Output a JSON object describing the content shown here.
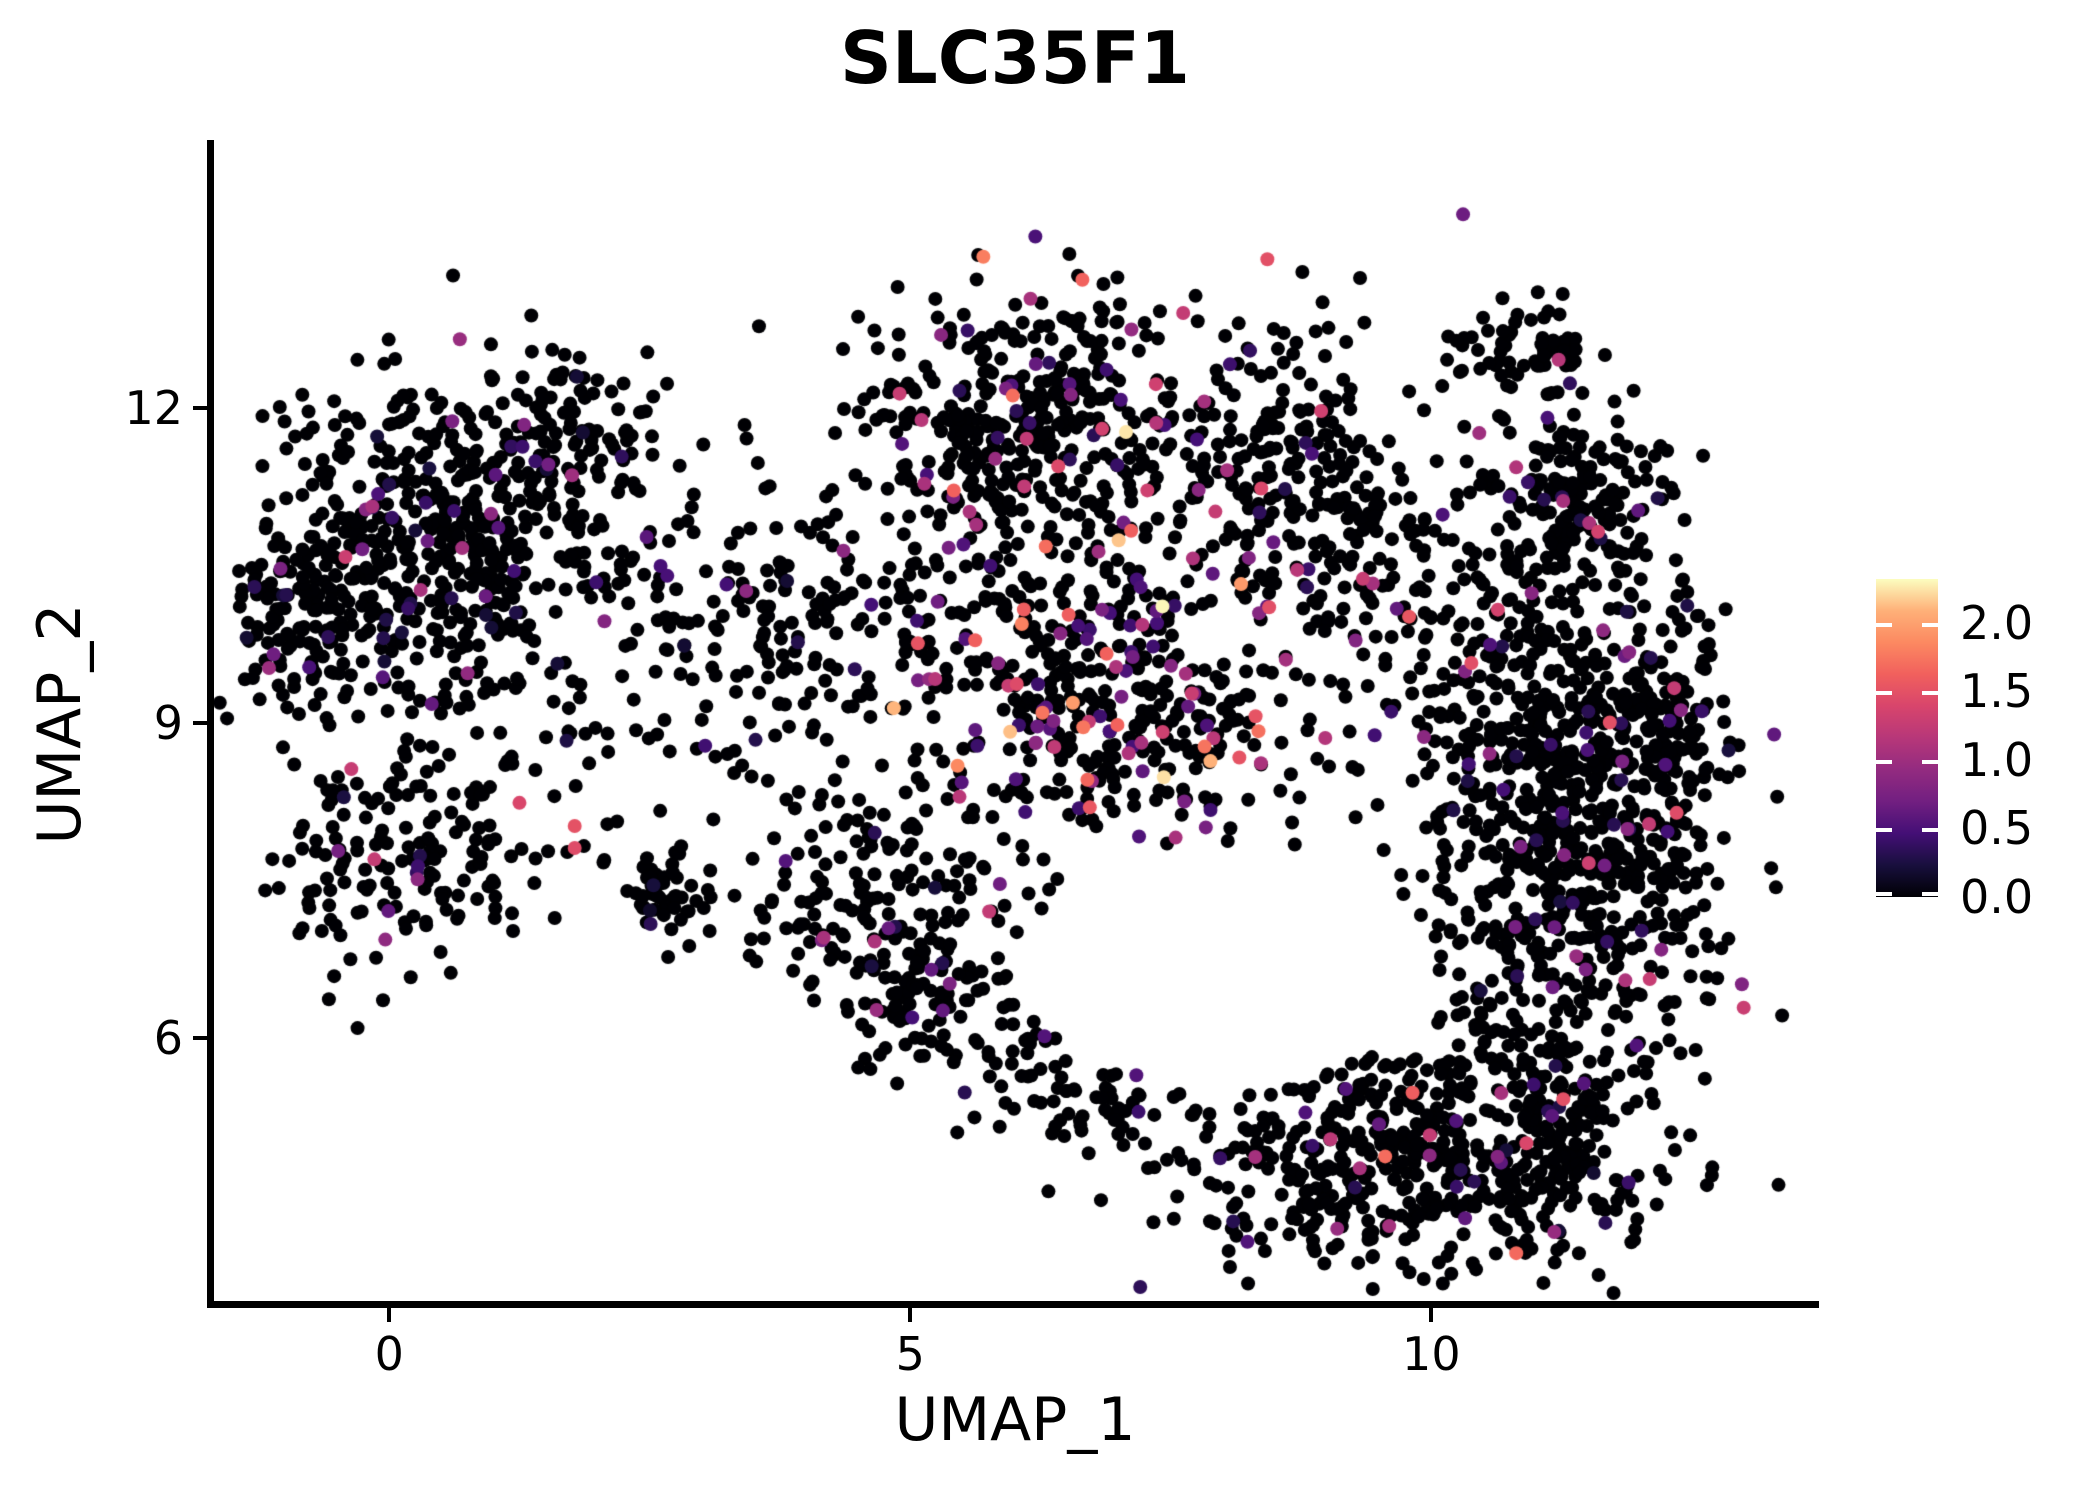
{
  "title": "SLC35F1",
  "axes": {
    "x_label": "UMAP_1",
    "y_label": "UMAP_2",
    "x_ticks": [
      0,
      5,
      10
    ],
    "y_ticks": [
      6,
      9,
      12
    ],
    "x_range": [
      -1.71,
      13.72
    ],
    "y_range": [
      3.46,
      14.55
    ]
  },
  "colorbar": {
    "position": "right",
    "min": 0.0,
    "max": 2.32,
    "tick_values": [
      2.0,
      1.5,
      1.0,
      0.5,
      0.0
    ],
    "tick_labels": [
      "2.0",
      "1.5",
      "1.0",
      "0.5",
      "0.0"
    ],
    "colormap": "magma",
    "stops": [
      {
        "t": 0.0,
        "c": "#000004"
      },
      {
        "t": 0.1,
        "c": "#180f3d"
      },
      {
        "t": 0.2,
        "c": "#440f76"
      },
      {
        "t": 0.3,
        "c": "#721f81"
      },
      {
        "t": 0.4,
        "c": "#932b80"
      },
      {
        "t": 0.5,
        "c": "#b73779"
      },
      {
        "t": 0.6,
        "c": "#d8456c"
      },
      {
        "t": 0.7,
        "c": "#f1605d"
      },
      {
        "t": 0.8,
        "c": "#fc8961"
      },
      {
        "t": 0.9,
        "c": "#feb078"
      },
      {
        "t": 1.0,
        "c": "#fcfdbf"
      }
    ]
  },
  "chart_data": {
    "type": "scatter",
    "title": "SLC35F1",
    "xlabel": "UMAP_1",
    "ylabel": "UMAP_2",
    "xlim": [
      -1.71,
      13.72
    ],
    "ylim": [
      3.46,
      14.55
    ],
    "grid": false,
    "legend_position": "right",
    "point_radius_px": 7,
    "seed": 7,
    "expression_color_scale": {
      "min": 0.0,
      "max": 2.32,
      "colormap": "magma"
    },
    "clusters": [
      {
        "name": "top-left-core",
        "cx": 0.59,
        "cy": 10.7,
        "sx": 0.85,
        "sy": 0.75,
        "rot": -0.3,
        "n": 520,
        "expr_frac": 0.08,
        "expr_max": 1.1
      },
      {
        "name": "top-left-west",
        "cx": -0.81,
        "cy": 9.98,
        "sx": 0.45,
        "sy": 0.55,
        "rot": 0.0,
        "n": 140,
        "expr_frac": 0.07,
        "expr_max": 1.0
      },
      {
        "name": "top-left-north",
        "cx": 1.64,
        "cy": 11.79,
        "sx": 0.5,
        "sy": 0.38,
        "rot": 0.0,
        "n": 90,
        "expr_frac": 0.06,
        "expr_max": 0.9
      },
      {
        "name": "left-lower-arm",
        "cx": 0.3,
        "cy": 7.89,
        "sx": 0.8,
        "sy": 0.5,
        "rot": 0.25,
        "n": 190,
        "expr_frac": 0.06,
        "expr_max": 1.6
      },
      {
        "name": "left-small-blob",
        "cx": 2.62,
        "cy": 7.36,
        "sx": 0.2,
        "sy": 0.2,
        "rot": 0.0,
        "n": 55,
        "expr_frac": 0.04,
        "expr_max": 0.8
      },
      {
        "name": "mid-left",
        "cx": 4.71,
        "cy": 7.41,
        "sx": 0.75,
        "sy": 0.45,
        "rot": 0.15,
        "n": 150,
        "expr_frac": 0.07,
        "expr_max": 1.2
      },
      {
        "name": "center-connector",
        "cx": 3.61,
        "cy": 9.79,
        "sx": 0.85,
        "sy": 0.85,
        "rot": 0.0,
        "n": 210,
        "expr_frac": 0.06,
        "expr_max": 1.0
      },
      {
        "name": "top-middle",
        "cx": 6.25,
        "cy": 11.89,
        "sx": 0.85,
        "sy": 0.62,
        "rot": 0.1,
        "n": 430,
        "expr_frac": 0.1,
        "expr_max": 1.8
      },
      {
        "name": "top-middle-right",
        "cx": 8.6,
        "cy": 11.55,
        "sx": 0.58,
        "sy": 0.65,
        "rot": 0.0,
        "n": 190,
        "expr_frac": 0.09,
        "expr_max": 1.5
      },
      {
        "name": "middle-high-expr",
        "cx": 6.82,
        "cy": 9.31,
        "sx": 1.05,
        "sy": 0.78,
        "rot": -0.2,
        "n": 500,
        "expr_frac": 0.2,
        "expr_max": 2.3
      },
      {
        "name": "mid-right-bridge",
        "cx": 9.61,
        "cy": 10.36,
        "sx": 0.7,
        "sy": 0.65,
        "rot": 0.0,
        "n": 140,
        "expr_frac": 0.1,
        "expr_max": 1.6
      },
      {
        "name": "top-right-clump",
        "cx": 10.92,
        "cy": 12.53,
        "sx": 0.38,
        "sy": 0.26,
        "rot": 0.0,
        "n": 65,
        "expr_frac": 0.08,
        "expr_max": 1.2
      },
      {
        "name": "right-main",
        "cx": 11.43,
        "cy": 8.36,
        "sx": 0.6,
        "sy": 1.6,
        "rot": 0.08,
        "n": 700,
        "expr_frac": 0.07,
        "expr_max": 1.5
      },
      {
        "name": "right-east-bulge",
        "cx": 12.2,
        "cy": 8.65,
        "sx": 0.35,
        "sy": 0.95,
        "rot": 0.0,
        "n": 180,
        "expr_frac": 0.06,
        "expr_max": 1.3
      },
      {
        "name": "right-top-arm",
        "cx": 11.43,
        "cy": 11.17,
        "sx": 0.42,
        "sy": 0.42,
        "rot": 0.0,
        "n": 130,
        "expr_frac": 0.08,
        "expr_max": 1.4
      },
      {
        "name": "right-bottom-taper",
        "cx": 11.29,
        "cy": 4.93,
        "sx": 0.38,
        "sy": 0.5,
        "rot": 0.0,
        "n": 110,
        "expr_frac": 0.04,
        "expr_max": 1.0
      },
      {
        "name": "right-west-edge",
        "cx": 10.42,
        "cy": 7.89,
        "sx": 0.45,
        "sy": 1.2,
        "rot": 0.0,
        "n": 170,
        "expr_frac": 0.07,
        "expr_max": 1.3
      },
      {
        "name": "bottom-main",
        "cx": 9.7,
        "cy": 4.89,
        "sx": 1.0,
        "sy": 0.6,
        "rot": 0.15,
        "n": 480,
        "expr_frac": 0.05,
        "expr_max": 1.7
      },
      {
        "name": "bottom-left-arm",
        "cx": 6.34,
        "cy": 5.7,
        "sx": 0.85,
        "sy": 0.4,
        "rot": -0.45,
        "n": 120,
        "expr_frac": 0.05,
        "expr_max": 1.2
      },
      {
        "name": "small-south-arm",
        "cx": 4.9,
        "cy": 6.36,
        "sx": 0.33,
        "sy": 0.45,
        "rot": 0.5,
        "n": 60,
        "expr_frac": 0.05,
        "expr_max": 1.0
      }
    ],
    "holes": [
      {
        "name": "central-void",
        "cx": 8.07,
        "cy": 6.7,
        "rx": 2.0,
        "ry": 1.15
      },
      {
        "name": "left-ring-hole",
        "cx": 1.26,
        "cy": 8.17,
        "rx": 0.33,
        "ry": 0.3
      },
      {
        "name": "middle-gap",
        "cx": 7.83,
        "cy": 9.79,
        "rx": 0.3,
        "ry": 0.28
      }
    ],
    "notable_points": [
      {
        "x": 7.07,
        "y": 11.77,
        "value": 2.25
      },
      {
        "x": 7.0,
        "y": 10.74,
        "value": 2.15
      },
      {
        "x": 7.42,
        "y": 10.11,
        "value": 2.3
      },
      {
        "x": 6.3,
        "y": 10.68,
        "value": 1.7
      },
      {
        "x": 6.52,
        "y": 10.03,
        "value": 1.6
      },
      {
        "x": 6.09,
        "y": 10.08,
        "value": 1.6
      },
      {
        "x": 6.66,
        "y": 8.96,
        "value": 1.75
      },
      {
        "x": 6.7,
        "y": 8.46,
        "value": 1.65
      },
      {
        "x": 9.82,
        "y": 5.48,
        "value": 1.6
      },
      {
        "x": 11.6,
        "y": 10.82,
        "value": 1.35
      },
      {
        "x": 10.46,
        "y": 11.76,
        "value": 1.0
      },
      {
        "x": 1.78,
        "y": 8.02,
        "value": 1.5
      },
      {
        "x": 1.78,
        "y": 7.81,
        "value": 1.45
      },
      {
        "x": 1.25,
        "y": 8.24,
        "value": 1.4
      },
      {
        "x": -0.42,
        "y": 10.58,
        "value": 1.3
      }
    ]
  }
}
